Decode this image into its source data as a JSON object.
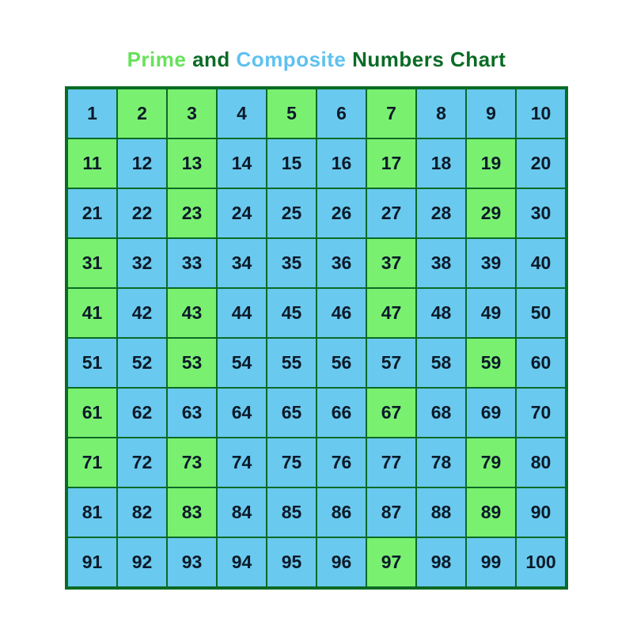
{
  "title": {
    "word_prime": "Prime",
    "word_and": "and",
    "word_composite": "Composite",
    "word_rest": "Numbers Chart",
    "color_prime": "#66e25a",
    "color_and": "#0a6b25",
    "color_composite": "#5fc1ef",
    "color_rest": "#0a6b25",
    "fontsize": 26,
    "fontweight": 700
  },
  "chart": {
    "type": "infographic",
    "rows": 10,
    "cols": 10,
    "range_start": 1,
    "range_end": 100,
    "prime_color": "#7af070",
    "composite_color": "#6ac9ee",
    "border_color": "#0a6b25",
    "outer_border_width": 3,
    "inner_border_width": 1.5,
    "cell_text_color": "#0b1a2a",
    "cell_fontsize": 23,
    "cell_fontweight": 700,
    "background_color": "#ffffff",
    "primes": [
      2,
      3,
      5,
      7,
      11,
      13,
      17,
      19,
      23,
      29,
      31,
      37,
      41,
      43,
      47,
      53,
      59,
      61,
      67,
      71,
      73,
      79,
      83,
      89,
      97
    ],
    "cells": [
      {
        "n": 1,
        "kind": "composite"
      },
      {
        "n": 2,
        "kind": "prime"
      },
      {
        "n": 3,
        "kind": "prime"
      },
      {
        "n": 4,
        "kind": "composite"
      },
      {
        "n": 5,
        "kind": "prime"
      },
      {
        "n": 6,
        "kind": "composite"
      },
      {
        "n": 7,
        "kind": "prime"
      },
      {
        "n": 8,
        "kind": "composite"
      },
      {
        "n": 9,
        "kind": "composite"
      },
      {
        "n": 10,
        "kind": "composite"
      },
      {
        "n": 11,
        "kind": "prime"
      },
      {
        "n": 12,
        "kind": "composite"
      },
      {
        "n": 13,
        "kind": "prime"
      },
      {
        "n": 14,
        "kind": "composite"
      },
      {
        "n": 15,
        "kind": "composite"
      },
      {
        "n": 16,
        "kind": "composite"
      },
      {
        "n": 17,
        "kind": "prime"
      },
      {
        "n": 18,
        "kind": "composite"
      },
      {
        "n": 19,
        "kind": "prime"
      },
      {
        "n": 20,
        "kind": "composite"
      },
      {
        "n": 21,
        "kind": "composite"
      },
      {
        "n": 22,
        "kind": "composite"
      },
      {
        "n": 23,
        "kind": "prime"
      },
      {
        "n": 24,
        "kind": "composite"
      },
      {
        "n": 25,
        "kind": "composite"
      },
      {
        "n": 26,
        "kind": "composite"
      },
      {
        "n": 27,
        "kind": "composite"
      },
      {
        "n": 28,
        "kind": "composite"
      },
      {
        "n": 29,
        "kind": "prime"
      },
      {
        "n": 30,
        "kind": "composite"
      },
      {
        "n": 31,
        "kind": "prime"
      },
      {
        "n": 32,
        "kind": "composite"
      },
      {
        "n": 33,
        "kind": "composite"
      },
      {
        "n": 34,
        "kind": "composite"
      },
      {
        "n": 35,
        "kind": "composite"
      },
      {
        "n": 36,
        "kind": "composite"
      },
      {
        "n": 37,
        "kind": "prime"
      },
      {
        "n": 38,
        "kind": "composite"
      },
      {
        "n": 39,
        "kind": "composite"
      },
      {
        "n": 40,
        "kind": "composite"
      },
      {
        "n": 41,
        "kind": "prime"
      },
      {
        "n": 42,
        "kind": "composite"
      },
      {
        "n": 43,
        "kind": "prime"
      },
      {
        "n": 44,
        "kind": "composite"
      },
      {
        "n": 45,
        "kind": "composite"
      },
      {
        "n": 46,
        "kind": "composite"
      },
      {
        "n": 47,
        "kind": "prime"
      },
      {
        "n": 48,
        "kind": "composite"
      },
      {
        "n": 49,
        "kind": "composite"
      },
      {
        "n": 50,
        "kind": "composite"
      },
      {
        "n": 51,
        "kind": "composite"
      },
      {
        "n": 52,
        "kind": "composite"
      },
      {
        "n": 53,
        "kind": "prime"
      },
      {
        "n": 54,
        "kind": "composite"
      },
      {
        "n": 55,
        "kind": "composite"
      },
      {
        "n": 56,
        "kind": "composite"
      },
      {
        "n": 57,
        "kind": "composite"
      },
      {
        "n": 58,
        "kind": "composite"
      },
      {
        "n": 59,
        "kind": "prime"
      },
      {
        "n": 60,
        "kind": "composite"
      },
      {
        "n": 61,
        "kind": "prime"
      },
      {
        "n": 62,
        "kind": "composite"
      },
      {
        "n": 63,
        "kind": "composite"
      },
      {
        "n": 64,
        "kind": "composite"
      },
      {
        "n": 65,
        "kind": "composite"
      },
      {
        "n": 66,
        "kind": "composite"
      },
      {
        "n": 67,
        "kind": "prime"
      },
      {
        "n": 68,
        "kind": "composite"
      },
      {
        "n": 69,
        "kind": "composite"
      },
      {
        "n": 70,
        "kind": "composite"
      },
      {
        "n": 71,
        "kind": "prime"
      },
      {
        "n": 72,
        "kind": "composite"
      },
      {
        "n": 73,
        "kind": "prime"
      },
      {
        "n": 74,
        "kind": "composite"
      },
      {
        "n": 75,
        "kind": "composite"
      },
      {
        "n": 76,
        "kind": "composite"
      },
      {
        "n": 77,
        "kind": "composite"
      },
      {
        "n": 78,
        "kind": "composite"
      },
      {
        "n": 79,
        "kind": "prime"
      },
      {
        "n": 80,
        "kind": "composite"
      },
      {
        "n": 81,
        "kind": "composite"
      },
      {
        "n": 82,
        "kind": "composite"
      },
      {
        "n": 83,
        "kind": "prime"
      },
      {
        "n": 84,
        "kind": "composite"
      },
      {
        "n": 85,
        "kind": "composite"
      },
      {
        "n": 86,
        "kind": "composite"
      },
      {
        "n": 87,
        "kind": "composite"
      },
      {
        "n": 88,
        "kind": "composite"
      },
      {
        "n": 89,
        "kind": "prime"
      },
      {
        "n": 90,
        "kind": "composite"
      },
      {
        "n": 91,
        "kind": "composite"
      },
      {
        "n": 92,
        "kind": "composite"
      },
      {
        "n": 93,
        "kind": "composite"
      },
      {
        "n": 94,
        "kind": "composite"
      },
      {
        "n": 95,
        "kind": "composite"
      },
      {
        "n": 96,
        "kind": "composite"
      },
      {
        "n": 97,
        "kind": "prime"
      },
      {
        "n": 98,
        "kind": "composite"
      },
      {
        "n": 99,
        "kind": "composite"
      },
      {
        "n": 100,
        "kind": "composite"
      }
    ]
  }
}
